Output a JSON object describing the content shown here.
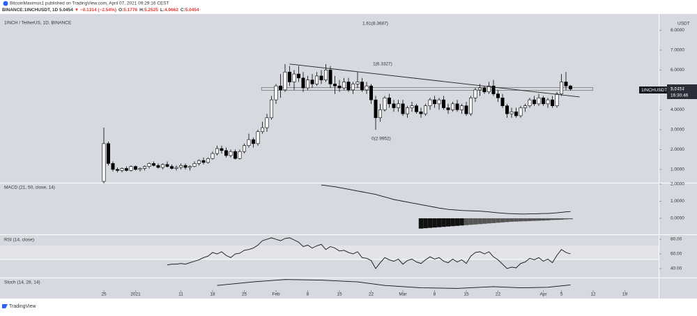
{
  "header": {
    "author": "BitcoinMaximus1 published on TradingView.com, April 07, 2021 09:29:16 CEST",
    "symbol": "BINANCE:1INCHUSDT, 1D",
    "last": "5.0454",
    "change": "▼ −0.1314 (−2.54%)",
    "ohlc": [
      {
        "k": "O:",
        "v": "5.1776"
      },
      {
        "k": "H:",
        "v": "5.2525"
      },
      {
        "k": "L:",
        "v": "4.9662"
      },
      {
        "k": "C:",
        "v": "5.0454"
      }
    ]
  },
  "chart_data": [
    {
      "type": "candlestick",
      "title": "1INCH / TetherUS, 1D, BINANCE",
      "unit": "USDT",
      "symbol_tag": "1INCHUSDT",
      "price_tag": "5.0454",
      "countdown": "16:30:46",
      "fib_labels": [
        "1.61(8.3687)",
        "1(6.3327)",
        "0(2.9952)"
      ],
      "xlim": [
        -22.92,
        122.46
      ],
      "ylim": [
        0.33,
        8.75
      ],
      "xticks": [
        {
          "value": 0,
          "label": "25"
        },
        {
          "value": 7,
          "label": "2021"
        },
        {
          "value": 17,
          "label": "11"
        },
        {
          "value": 24,
          "label": "18"
        },
        {
          "value": 31,
          "label": "25"
        },
        {
          "value": 38,
          "label": "Feb"
        },
        {
          "value": 45,
          "label": "8"
        },
        {
          "value": 52,
          "label": "15"
        },
        {
          "value": 59,
          "label": "22"
        },
        {
          "value": 66,
          "label": "Mar"
        },
        {
          "value": 73,
          "label": "8"
        },
        {
          "value": 80,
          "label": "15"
        },
        {
          "value": 87,
          "label": "22"
        },
        {
          "value": 97,
          "label": "Apr"
        },
        {
          "value": 101,
          "label": "5"
        },
        {
          "value": 108,
          "label": "12"
        },
        {
          "value": 115,
          "label": "19"
        }
      ],
      "yticks": [
        {
          "value": 8,
          "label": "8.0000"
        },
        {
          "value": 7,
          "label": "7.0000"
        },
        {
          "value": 6,
          "label": "6.0000"
        },
        {
          "value": 5,
          "label": "5.0000"
        },
        {
          "value": 4,
          "label": "4.0000"
        },
        {
          "value": 3,
          "label": "3.0000"
        },
        {
          "value": 2,
          "label": "2.0000"
        },
        {
          "value": 1,
          "label": "1.0000"
        }
      ],
      "trendline": {
        "x": [
          41,
          105
        ],
        "y": [
          6.3,
          4.65
        ]
      },
      "range_box": {
        "x": [
          34.8,
          107.9
        ],
        "y": [
          4.98,
          5.12
        ]
      },
      "candles": [
        [
          0.4,
          3.1,
          0.3,
          2.3
        ],
        [
          2.3,
          2.4,
          1.2,
          1.3
        ],
        [
          1.3,
          1.4,
          0.9,
          1.0
        ],
        [
          1.0,
          1.1,
          0.85,
          0.95
        ],
        [
          0.95,
          1.1,
          0.85,
          1.05
        ],
        [
          1.05,
          1.15,
          0.9,
          0.95
        ],
        [
          0.95,
          1.2,
          0.9,
          1.15
        ],
        [
          1.15,
          1.2,
          0.95,
          1.0
        ],
        [
          1.0,
          1.1,
          0.9,
          1.05
        ],
        [
          1.05,
          1.2,
          0.95,
          1.15
        ],
        [
          1.15,
          1.35,
          1.05,
          1.3
        ],
        [
          1.3,
          1.4,
          1.15,
          1.2
        ],
        [
          1.2,
          1.3,
          1.05,
          1.1
        ],
        [
          1.1,
          1.3,
          1.0,
          1.25
        ],
        [
          1.25,
          1.4,
          1.1,
          1.15
        ],
        [
          1.15,
          1.25,
          1.0,
          1.05
        ],
        [
          1.05,
          1.2,
          0.95,
          1.1
        ],
        [
          1.1,
          1.3,
          1.0,
          1.2
        ],
        [
          1.2,
          1.3,
          1.0,
          1.1
        ],
        [
          1.1,
          1.2,
          0.95,
          1.15
        ],
        [
          1.15,
          1.4,
          1.1,
          1.3
        ],
        [
          1.3,
          1.5,
          1.2,
          1.45
        ],
        [
          1.45,
          1.6,
          1.25,
          1.35
        ],
        [
          1.35,
          1.6,
          1.3,
          1.55
        ],
        [
          1.55,
          1.9,
          1.5,
          1.8
        ],
        [
          1.8,
          2.2,
          1.7,
          2.05
        ],
        [
          2.05,
          2.2,
          1.8,
          1.95
        ],
        [
          1.95,
          2.1,
          1.6,
          1.7
        ],
        [
          1.7,
          2.0,
          1.6,
          1.9
        ],
        [
          1.9,
          2.0,
          1.5,
          1.55
        ],
        [
          1.55,
          2.0,
          1.5,
          1.9
        ],
        [
          1.9,
          2.3,
          1.8,
          2.2
        ],
        [
          2.2,
          2.8,
          2.1,
          2.5
        ],
        [
          2.5,
          2.6,
          2.1,
          2.3
        ],
        [
          2.3,
          3.0,
          2.2,
          2.9
        ],
        [
          2.9,
          3.4,
          2.8,
          3.1
        ],
        [
          3.1,
          3.8,
          2.9,
          3.6
        ],
        [
          3.6,
          4.7,
          3.5,
          4.5
        ],
        [
          4.5,
          5.3,
          4.3,
          5.2
        ],
        [
          5.2,
          5.8,
          4.6,
          5.0
        ],
        [
          5.0,
          6.3,
          4.9,
          5.9
        ],
        [
          5.9,
          6.2,
          5.2,
          5.4
        ],
        [
          5.4,
          6.0,
          5.0,
          5.8
        ],
        [
          5.8,
          6.2,
          5.4,
          5.6
        ],
        [
          5.6,
          5.9,
          4.9,
          5.1
        ],
        [
          5.1,
          5.7,
          5.0,
          5.5
        ],
        [
          5.5,
          5.8,
          5.1,
          5.3
        ],
        [
          5.3,
          5.9,
          5.2,
          5.7
        ],
        [
          5.7,
          6.0,
          5.3,
          5.5
        ],
        [
          5.5,
          6.3,
          5.4,
          6.0
        ],
        [
          6.0,
          6.2,
          5.1,
          5.3
        ],
        [
          5.3,
          5.7,
          4.8,
          5.2
        ],
        [
          5.2,
          5.5,
          4.9,
          5.1
        ],
        [
          5.1,
          5.6,
          5.0,
          5.4
        ],
        [
          5.4,
          5.6,
          4.9,
          5.0
        ],
        [
          5.0,
          5.4,
          4.8,
          5.3
        ],
        [
          5.3,
          5.9,
          5.1,
          5.4
        ],
        [
          5.4,
          5.6,
          4.9,
          5.0
        ],
        [
          5.0,
          5.4,
          4.8,
          5.2
        ],
        [
          5.2,
          5.3,
          4.3,
          4.5
        ],
        [
          4.5,
          4.7,
          2.99,
          3.6
        ],
        [
          3.6,
          4.3,
          3.4,
          4.0
        ],
        [
          4.0,
          4.7,
          3.9,
          4.6
        ],
        [
          4.6,
          4.8,
          4.1,
          4.3
        ],
        [
          4.3,
          4.5,
          3.9,
          4.1
        ],
        [
          4.1,
          4.5,
          3.9,
          4.3
        ],
        [
          4.3,
          4.5,
          3.7,
          3.8
        ],
        [
          3.8,
          4.2,
          3.6,
          4.1
        ],
        [
          4.1,
          4.4,
          3.9,
          4.2
        ],
        [
          4.2,
          4.3,
          3.8,
          3.9
        ],
        [
          3.9,
          4.1,
          3.6,
          3.8
        ],
        [
          3.8,
          4.3,
          3.7,
          4.2
        ],
        [
          4.2,
          4.6,
          4.0,
          4.5
        ],
        [
          4.5,
          4.7,
          4.1,
          4.3
        ],
        [
          4.3,
          4.6,
          4.0,
          4.5
        ],
        [
          4.5,
          4.7,
          4.0,
          4.1
        ],
        [
          4.1,
          4.3,
          3.8,
          4.0
        ],
        [
          4.0,
          4.4,
          3.9,
          4.3
        ],
        [
          4.3,
          4.5,
          3.9,
          4.0
        ],
        [
          4.0,
          4.3,
          3.8,
          4.2
        ],
        [
          4.2,
          4.4,
          3.7,
          3.8
        ],
        [
          3.8,
          4.7,
          3.7,
          4.6
        ],
        [
          4.6,
          5.1,
          4.4,
          5.0
        ],
        [
          5.0,
          5.3,
          4.7,
          5.1
        ],
        [
          5.1,
          5.2,
          4.8,
          4.9
        ],
        [
          4.9,
          5.4,
          4.8,
          5.2
        ],
        [
          5.2,
          5.5,
          4.7,
          4.8
        ],
        [
          4.8,
          5.0,
          4.4,
          4.6
        ],
        [
          4.6,
          4.8,
          4.1,
          4.2
        ],
        [
          4.2,
          4.3,
          3.6,
          3.8
        ],
        [
          3.8,
          4.1,
          3.6,
          3.9
        ],
        [
          3.9,
          4.1,
          3.6,
          3.7
        ],
        [
          3.7,
          4.2,
          3.6,
          4.1
        ],
        [
          4.1,
          4.3,
          3.9,
          4.2
        ],
        [
          4.2,
          4.6,
          4.1,
          4.5
        ],
        [
          4.5,
          4.7,
          4.2,
          4.3
        ],
        [
          4.3,
          4.8,
          4.2,
          4.6
        ],
        [
          4.6,
          4.7,
          4.2,
          4.3
        ],
        [
          4.3,
          4.6,
          4.1,
          4.5
        ],
        [
          4.5,
          4.7,
          4.1,
          4.2
        ],
        [
          4.2,
          4.9,
          4.1,
          4.8
        ],
        [
          4.8,
          5.8,
          4.7,
          5.4
        ],
        [
          5.4,
          5.9,
          5.0,
          5.2
        ],
        [
          5.2,
          5.2525,
          4.9662,
          5.0454
        ]
      ]
    },
    {
      "type": "macd",
      "title": "MACD (21, 50, close, 14)",
      "ylim": [
        -0.9,
        2.04
      ],
      "yticks": [
        {
          "value": 2,
          "label": "2.0000"
        },
        {
          "value": 1,
          "label": "1.0000"
        },
        {
          "value": 0,
          "label": "0.0000"
        }
      ],
      "line": [
        null,
        null,
        null,
        null,
        null,
        null,
        null,
        null,
        null,
        null,
        null,
        null,
        null,
        null,
        null,
        null,
        null,
        null,
        null,
        null,
        null,
        null,
        null,
        null,
        null,
        null,
        null,
        null,
        null,
        null,
        null,
        null,
        null,
        null,
        null,
        null,
        null,
        null,
        null,
        null,
        null,
        null,
        null,
        null,
        null,
        null,
        null,
        null,
        1.95,
        1.92,
        1.88,
        1.85,
        1.8,
        1.75,
        1.7,
        1.65,
        1.6,
        1.55,
        1.5,
        1.45,
        1.4,
        1.32,
        1.25,
        1.18,
        1.1,
        1.05,
        1.0,
        0.95,
        0.9,
        0.85,
        0.8,
        0.75,
        0.7,
        0.65,
        0.6,
        0.56,
        0.52,
        0.5,
        0.48,
        0.46,
        0.45,
        0.44,
        0.43,
        0.42,
        0.4,
        0.38,
        0.35,
        0.32,
        0.3,
        0.28,
        0.27,
        0.26,
        0.25,
        0.25,
        0.26,
        0.26,
        0.27,
        0.28,
        0.28,
        0.3,
        0.32,
        0.35,
        0.38,
        0.4
      ],
      "histogram": [
        null,
        null,
        null,
        null,
        null,
        null,
        null,
        null,
        null,
        null,
        null,
        null,
        null,
        null,
        null,
        null,
        null,
        null,
        null,
        null,
        null,
        null,
        null,
        null,
        null,
        null,
        null,
        null,
        null,
        null,
        null,
        null,
        null,
        null,
        null,
        null,
        null,
        null,
        null,
        null,
        null,
        null,
        null,
        null,
        null,
        null,
        null,
        null,
        null,
        null,
        null,
        null,
        null,
        null,
        null,
        null,
        null,
        null,
        null,
        null,
        null,
        null,
        null,
        null,
        null,
        null,
        null,
        null,
        null,
        null,
        -0.6,
        -0.58,
        -0.56,
        -0.54,
        -0.52,
        -0.5,
        -0.48,
        -0.46,
        -0.44,
        -0.42,
        -0.4,
        -0.38,
        -0.36,
        -0.34,
        -0.32,
        -0.3,
        -0.28,
        -0.26,
        -0.24,
        -0.22,
        -0.2,
        -0.19,
        -0.18,
        -0.17,
        -0.16,
        -0.15,
        -0.14,
        -0.13,
        -0.12,
        -0.1,
        -0.09,
        -0.08,
        -0.06,
        -0.05
      ]
    },
    {
      "type": "line",
      "title": "RSI (14, close)",
      "ylim": [
        28.6,
        85.7
      ],
      "yticks": [
        {
          "value": 80,
          "label": "80.00"
        },
        {
          "value": 60,
          "label": "60.00"
        },
        {
          "value": 40,
          "label": "40.00"
        }
      ],
      "values": [
        null,
        null,
        null,
        null,
        null,
        null,
        null,
        null,
        null,
        null,
        null,
        null,
        null,
        null,
        45,
        46,
        46,
        47,
        46,
        48,
        50,
        52,
        55,
        57,
        62,
        60,
        63,
        58,
        55,
        60,
        61,
        65,
        66,
        68,
        72,
        78,
        80,
        82,
        80,
        78,
        81,
        82,
        79,
        76,
        70,
        72,
        68,
        71,
        73,
        66,
        70,
        68,
        64,
        65,
        62,
        60,
        63,
        55,
        54,
        51,
        40,
        48,
        55,
        52,
        50,
        53,
        46,
        51,
        53,
        49,
        47,
        52,
        56,
        53,
        55,
        50,
        48,
        53,
        49,
        52,
        47,
        57,
        62,
        63,
        60,
        63,
        56,
        52,
        46,
        40,
        42,
        41,
        47,
        49,
        54,
        52,
        55,
        50,
        53,
        48,
        58,
        66,
        62,
        60
      ]
    },
    {
      "type": "line",
      "title": "Stoch (14, 28, 14)",
      "ylim": [
        0,
        100
      ],
      "x": [
        25,
        33,
        40,
        48,
        56,
        62,
        70,
        78,
        86,
        92,
        98,
        103
      ],
      "values": [
        40,
        70,
        90,
        85,
        70,
        40,
        20,
        15,
        30,
        20,
        25,
        45
      ]
    }
  ],
  "footer": {
    "brand": "TradingView"
  }
}
